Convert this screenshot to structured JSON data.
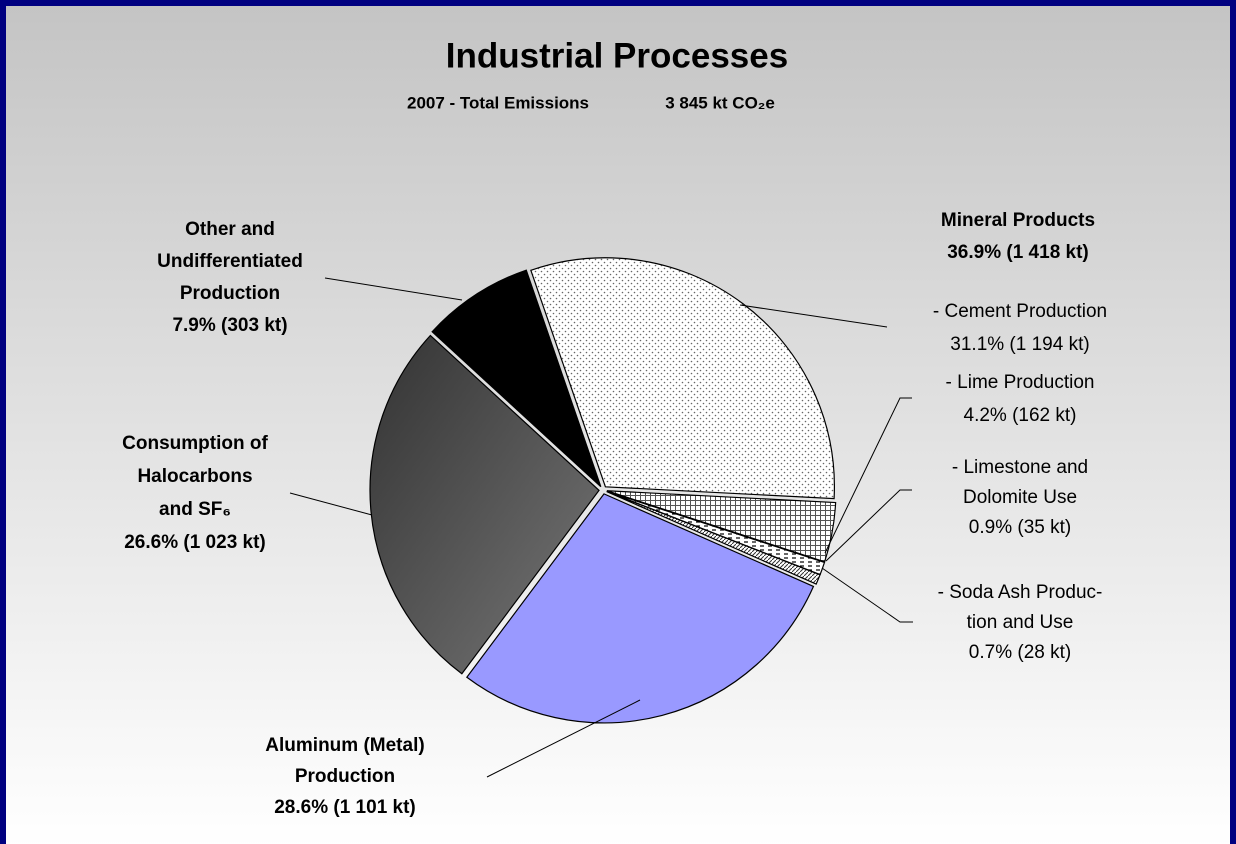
{
  "chart_data": {
    "type": "pie",
    "title": "Industrial Processes",
    "subtitle": [
      "2007 - Total Emissions",
      "3 845 kt CO₂e"
    ],
    "categories": [
      [
        "- Cement Production"
      ],
      [
        "- Lime Production"
      ],
      [
        "- Limestone and",
        "Dolomite Use"
      ],
      [
        "- Soda Ash Produc-",
        "tion and Use"
      ],
      [
        "Aluminum (Metal)",
        "Production"
      ],
      [
        "Consumption of",
        "Halocarbons",
        "and SF₆"
      ],
      [
        "Other and",
        "Undifferentiated",
        "Production"
      ]
    ],
    "values": [
      31.1,
      4.2,
      0.9,
      0.7,
      28.6,
      26.6,
      7.9
    ],
    "value_labels": [
      "31.1% (1 194 kt)",
      "4.2% (162 kt)",
      "0.9% (35 kt)",
      "0.7% (28 kt)",
      "28.6% (1 101 kt)",
      "26.6% (1 023 kt)",
      "7.9% (303 kt)"
    ],
    "colors": [
      "#ffffff",
      "#ffffff",
      "#ffffff",
      "#ffffff",
      "#9999ff",
      "#555555",
      "#000000"
    ],
    "patterns": [
      "dots",
      "grid",
      "dashes",
      "diagonal",
      "solid",
      "gradient",
      "solid"
    ],
    "annotation": [
      "Mineral Products",
      "36.9% (1 418 kt)"
    ]
  }
}
